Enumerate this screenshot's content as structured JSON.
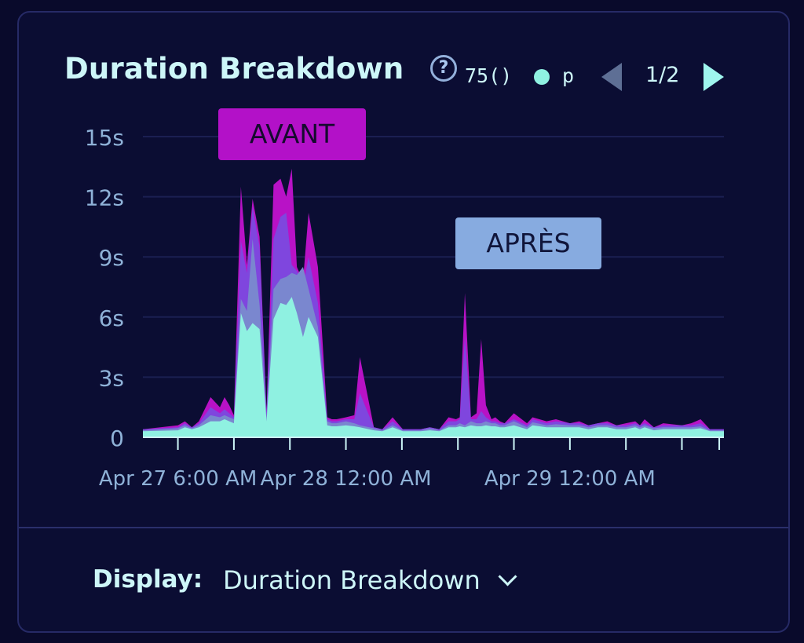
{
  "header": {
    "title": "Duration Breakdown",
    "help_glyph": "?",
    "legend_text": "75()",
    "legend_dot_color": "#8ff1e1",
    "legend_series_label": "p",
    "pager": "1/2"
  },
  "annotations": {
    "before": "AVANT",
    "after": "APRÈS"
  },
  "footer": {
    "display_label": "Display:",
    "display_value": "Duration Breakdown"
  },
  "icons": {
    "help": "question-circle-icon",
    "prev": "triangle-left-icon",
    "next": "triangle-right-icon",
    "dropdown": "chevron-down-icon"
  },
  "chart_data": {
    "type": "area",
    "stacked": false,
    "x_unit": "hours since Apr 27 12:00 AM",
    "x_range": [
      2.25,
      64.5
    ],
    "y_range": [
      0,
      15
    ],
    "y_ticks": [
      {
        "v": 0,
        "label": "0"
      },
      {
        "v": 3,
        "label": "3s"
      },
      {
        "v": 6,
        "label": "6s"
      },
      {
        "v": 9,
        "label": "9s"
      },
      {
        "v": 12,
        "label": "12s"
      },
      {
        "v": 15,
        "label": "15s"
      }
    ],
    "x_ticks": [
      6,
      12,
      18,
      24,
      30,
      36,
      42,
      48,
      54,
      60,
      64
    ],
    "x_tick_labels": [
      {
        "v": 6,
        "label": "Apr 27 6:00 AM"
      },
      {
        "v": 24,
        "label": "Apr 28 12:00 AM"
      },
      {
        "v": 48,
        "label": "Apr 29 12:00 AM"
      }
    ],
    "grid": true,
    "x": [
      2.25,
      6,
      6.75,
      7.5,
      8.25,
      9.5,
      10.5,
      11,
      11.5,
      12,
      12.75,
      13.4,
      14,
      14.75,
      15.5,
      16.25,
      17,
      17.6,
      18.2,
      18.75,
      19.4,
      20,
      21,
      22,
      22.5,
      23,
      24,
      24.9,
      25.5,
      27,
      27.9,
      29,
      30.1,
      31,
      32,
      33,
      34,
      35,
      35.8,
      36.2,
      36.75,
      37.4,
      38,
      38.5,
      39,
      39.6,
      40,
      40.5,
      41,
      42,
      43.4,
      44,
      45.5,
      46.5,
      48,
      49,
      50,
      51,
      52,
      53,
      54,
      55,
      55.5,
      56,
      57,
      58,
      60,
      61,
      62,
      63,
      63.75,
      64.5
    ],
    "series": [
      {
        "name": "",
        "color": "#b812c6",
        "values": [
          0.4,
          0.6,
          0.8,
          0.5,
          0.8,
          2,
          1.5,
          2,
          1.6,
          1.1,
          12.5,
          8.6,
          11.9,
          10,
          1.3,
          12.6,
          12.9,
          12,
          13.4,
          8.5,
          7.8,
          11.2,
          8.5,
          1.0,
          0.9,
          0.9,
          1.0,
          1.1,
          4,
          0.5,
          0.4,
          1.0,
          0.4,
          0.4,
          0.4,
          0.5,
          0.4,
          1.0,
          0.9,
          1.0,
          7.2,
          1.0,
          1.2,
          4.9,
          1.6,
          0.9,
          1.0,
          0.8,
          0.7,
          1.2,
          0.7,
          1.0,
          0.8,
          0.9,
          0.7,
          0.8,
          0.6,
          0.7,
          0.8,
          0.6,
          0.7,
          0.8,
          0.6,
          0.9,
          0.5,
          0.7,
          0.6,
          0.7,
          0.9,
          0.4,
          0.4,
          0.4
        ]
      },
      {
        "name": "",
        "color": "#7f46de",
        "values": [
          0.4,
          0.5,
          0.7,
          0.5,
          0.7,
          1.5,
          1.2,
          1.4,
          1.2,
          1.0,
          9.8,
          8.2,
          11.5,
          9.5,
          1.2,
          9.9,
          11,
          11.2,
          8.6,
          8.3,
          7.5,
          9,
          6.7,
          0.9,
          0.8,
          0.8,
          0.9,
          0.9,
          2.2,
          0.5,
          0.4,
          0.8,
          0.4,
          0.4,
          0.4,
          0.5,
          0.4,
          0.8,
          0.8,
          0.9,
          5,
          0.9,
          0.9,
          1.3,
          1.0,
          0.8,
          0.8,
          0.7,
          0.7,
          0.9,
          0.6,
          0.9,
          0.7,
          0.8,
          0.7,
          0.7,
          0.6,
          0.7,
          0.7,
          0.6,
          0.6,
          0.7,
          0.6,
          0.7,
          0.5,
          0.6,
          0.6,
          0.6,
          0.7,
          0.4,
          0.4,
          0.4
        ]
      },
      {
        "name": "",
        "color": "#7a87cf",
        "values": [
          0.35,
          0.45,
          0.6,
          0.45,
          0.6,
          1.1,
          1.0,
          1.1,
          1.0,
          0.9,
          6.9,
          6.3,
          9.9,
          6.6,
          1.0,
          7.4,
          7.9,
          8,
          8.2,
          8.1,
          8.5,
          7.4,
          5.5,
          0.8,
          0.7,
          0.7,
          0.8,
          0.7,
          0.6,
          0.45,
          0.35,
          0.6,
          0.35,
          0.35,
          0.35,
          0.45,
          0.35,
          0.6,
          0.6,
          0.7,
          0.6,
          0.8,
          0.7,
          0.7,
          0.8,
          0.7,
          0.7,
          0.6,
          0.6,
          0.8,
          0.5,
          0.75,
          0.6,
          0.65,
          0.6,
          0.6,
          0.5,
          0.6,
          0.6,
          0.5,
          0.5,
          0.6,
          0.5,
          0.6,
          0.45,
          0.5,
          0.5,
          0.5,
          0.55,
          0.35,
          0.35,
          0.35
        ]
      },
      {
        "name": "p",
        "color": "#8ff1e1",
        "values": [
          0.3,
          0.35,
          0.5,
          0.4,
          0.5,
          0.8,
          0.8,
          0.9,
          0.8,
          0.7,
          6.2,
          5.3,
          5.7,
          5.4,
          0.8,
          5.9,
          6.7,
          6.6,
          7,
          6.2,
          5.0,
          6.0,
          5.0,
          0.6,
          0.55,
          0.55,
          0.6,
          0.55,
          0.5,
          0.35,
          0.3,
          0.5,
          0.3,
          0.3,
          0.3,
          0.35,
          0.3,
          0.5,
          0.5,
          0.55,
          0.5,
          0.6,
          0.55,
          0.55,
          0.6,
          0.55,
          0.55,
          0.5,
          0.5,
          0.6,
          0.4,
          0.6,
          0.5,
          0.5,
          0.5,
          0.5,
          0.4,
          0.5,
          0.5,
          0.4,
          0.4,
          0.5,
          0.4,
          0.5,
          0.35,
          0.4,
          0.4,
          0.4,
          0.45,
          0.3,
          0.3,
          0.3
        ]
      }
    ]
  }
}
